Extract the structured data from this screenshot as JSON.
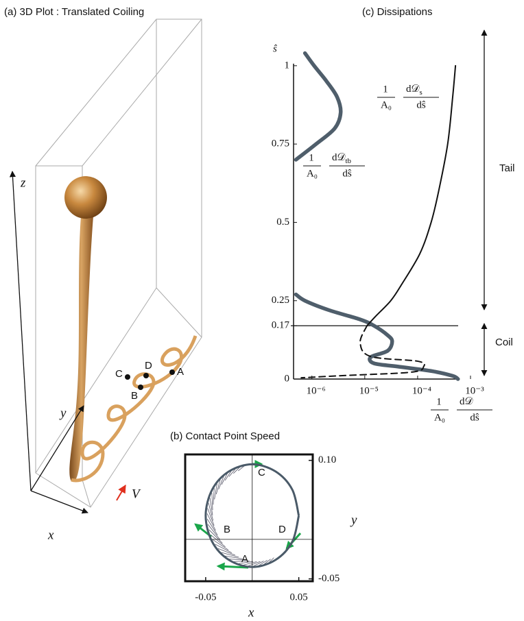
{
  "chart_data": [
    {
      "type": "line",
      "title": "(c) Dissipations",
      "y_label": "ŝ",
      "x_label": {
        "numerator": "1",
        "denominator": "A₀",
        "d_numerator": "d𝒟",
        "subscript": "",
        "d_denominator": "dŝ"
      },
      "log_x": true,
      "xlim": [
        4.5e-07,
        0.001
      ],
      "ylim": [
        0,
        1.05
      ],
      "xticks": [
        {
          "value": 1e-06,
          "label": "10⁻⁶"
        },
        {
          "value": 1e-05,
          "label": "10⁻⁵"
        },
        {
          "value": 0.0001,
          "label": "10⁻⁴"
        },
        {
          "value": 0.001,
          "label": "10⁻³"
        }
      ],
      "yticks": [
        0,
        0.17,
        0.25,
        0.5,
        0.75,
        1
      ],
      "reference_line": 0.17,
      "brackets": [
        "Tail",
        "Coil"
      ],
      "series": [
        {
          "color": "#4f5e6b",
          "style": "thick",
          "label": {
            "numerator": "1",
            "denominator": "A₀",
            "d_numerator": "d𝒟",
            "subscript": "tb",
            "d_denominator": "dŝ"
          },
          "x": [
            7.4e-07,
            1.1e-06,
            1.9e-06,
            3e-06,
            3.5e-06,
            2.7e-06,
            1.2e-06,
            5e-07,
            null,
            5e-07,
            7.4e-07,
            2.1e-06,
            8.2e-06,
            1.5e-05,
            2.7e-05,
            3.3e-05,
            2.7e-05,
            1.3e-05,
            1.5e-05,
            4.2e-05,
            0.00019,
            0.00046,
            0.00058
          ],
          "values": [
            1.04,
            1,
            0.95,
            0.9,
            0.85,
            0.8,
            0.75,
            0.7,
            null,
            0.27,
            0.25,
            0.22,
            0.19,
            0.17,
            0.14,
            0.12,
            0.09,
            0.07,
            0.05,
            0.04,
            0.025,
            0.01,
            0
          ]
        },
        {
          "color": "#111111",
          "style": "solid",
          "label": {
            "numerator": "1",
            "denominator": "A₀",
            "d_numerator": "d𝒟",
            "subscript": "s",
            "d_denominator": "dŝ"
          },
          "x": [
            1.1e-05,
            1.6e-05,
            3.1e-05,
            4.9e-05,
            0.00011,
            0.00018,
            0.00025,
            0.00037,
            0.00046,
            0.00052
          ],
          "values": [
            0.17,
            0.2,
            0.25,
            0.3,
            0.4,
            0.5,
            0.6,
            0.75,
            0.9,
            1
          ]
        },
        {
          "color": "#111111",
          "style": "dashed",
          "x": [
            1.1e-05,
            8.2e-06,
            1.3e-05,
            0.0001,
            0.00013,
            7.6e-05,
            3.8e-06,
            6.3e-07
          ],
          "values": [
            0.17,
            0.116,
            0.072,
            0.057,
            0.04,
            0.022,
            0.011,
            0.004
          ]
        }
      ]
    },
    {
      "type": "curve",
      "title": "(b) Contact Point Speed",
      "x_label": "x",
      "y_label": "y",
      "xlim": [
        -0.072,
        0.065
      ],
      "ylim": [
        -0.053,
        0.1075
      ],
      "xticks": [
        -0.05,
        0.05
      ],
      "yticks": [
        {
          "value": 0.1,
          "label": "0.10"
        },
        -0.05
      ],
      "point_labels": [
        "A",
        "B",
        "C",
        "D"
      ],
      "series": [
        {
          "color": "#4a5a68",
          "x": [
            0.05,
            0.043,
            0.025,
            0,
            -0.025,
            -0.043,
            -0.05,
            -0.043,
            -0.025,
            0,
            0.025,
            0.043,
            0.05
          ],
          "values": [
            0.03,
            0.063,
            0.086,
            0.095,
            0.086,
            0.063,
            0.03,
            -0.003,
            -0.026,
            -0.035,
            -0.026,
            -0.003,
            0.03
          ]
        }
      ]
    }
  ],
  "illustration": {
    "title": "(a)  3D Plot : Translated Coiling",
    "axis_z": "z",
    "axis_y": "y",
    "axis_x": "x",
    "velocity": "V",
    "points": [
      "A",
      "B",
      "C",
      "D"
    ]
  }
}
